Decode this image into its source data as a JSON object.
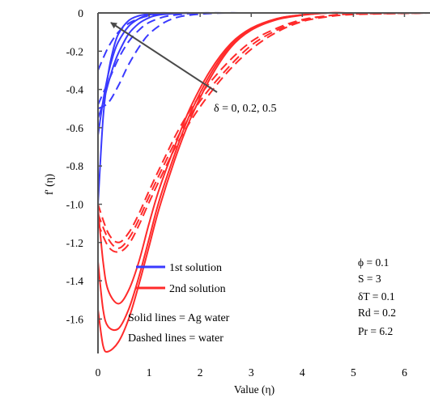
{
  "chart_data": {
    "type": "line",
    "xlabel": "Value (η)",
    "ylabel": "f' (η)",
    "xlim": [
      0,
      6.5
    ],
    "ylim": [
      -1.78,
      0
    ],
    "x_ticks": [
      "0",
      "1",
      "2",
      "3",
      "4",
      "5",
      "6"
    ],
    "y_ticks": [
      "0",
      "-0.2",
      "-0.4",
      "-0.6",
      "-0.8",
      "-1.0",
      "-1.2",
      "-1.4",
      "-1.6"
    ],
    "grid": false,
    "colors": {
      "first": "#3a3aff",
      "second": "#ff2a2a",
      "arrow": "#4a4a4a"
    },
    "legend": {
      "placement": "bottom-left",
      "entries": [
        {
          "label": "1st solution",
          "color": "#3a3aff"
        },
        {
          "label": "2nd solution",
          "color": "#ff2a2a"
        }
      ],
      "notes": [
        "Solid lines = Ag water",
        "Dashed lines = water"
      ]
    },
    "parameters": [
      "ϕ = 0.1",
      "S = 3",
      "δT = 0.1",
      "Rd = 0.2",
      "Pr = 6.2"
    ],
    "annotation": "δ = 0, 0.2, 0.5",
    "series": [
      {
        "solution": "1st",
        "fluid": "Ag water",
        "style": "solid",
        "x": [
          0,
          0.1,
          0.2,
          0.3,
          0.4,
          0.6,
          0.8,
          1.0,
          1.2,
          1.5,
          2.0,
          3.0,
          4.0,
          5.0,
          6.5
        ],
        "y": [
          -1.0,
          -0.55,
          -0.32,
          -0.19,
          -0.11,
          -0.04,
          -0.015,
          -0.005,
          0,
          0,
          0,
          0,
          0,
          0,
          0
        ]
      },
      {
        "solution": "1st",
        "fluid": "Ag water",
        "style": "solid",
        "x": [
          0,
          0.1,
          0.2,
          0.3,
          0.4,
          0.6,
          0.8,
          1.0,
          1.2,
          1.5,
          2.0,
          3.0,
          4.0,
          5.0,
          6.5
        ],
        "y": [
          -0.64,
          -0.46,
          -0.32,
          -0.22,
          -0.15,
          -0.07,
          -0.03,
          -0.01,
          -0.003,
          0,
          0,
          0,
          0,
          0,
          0
        ]
      },
      {
        "solution": "1st",
        "fluid": "Ag water",
        "style": "solid",
        "x": [
          0,
          0.1,
          0.2,
          0.3,
          0.4,
          0.6,
          0.8,
          1.0,
          1.2,
          1.5,
          2.0,
          3.0,
          4.0,
          5.0,
          6.5
        ],
        "y": [
          -0.55,
          -0.47,
          -0.37,
          -0.28,
          -0.21,
          -0.11,
          -0.055,
          -0.025,
          -0.01,
          -0.003,
          0,
          0,
          0,
          0,
          0
        ]
      },
      {
        "solution": "1st",
        "fluid": "water",
        "style": "dashed",
        "x": [
          0,
          0.2,
          0.4,
          0.6,
          0.8,
          1.0,
          1.3,
          1.6,
          2.0,
          2.5,
          3.0,
          4.0,
          5.0,
          6.5
        ],
        "y": [
          -0.3,
          -0.18,
          -0.1,
          -0.055,
          -0.03,
          -0.015,
          -0.005,
          0,
          0,
          0,
          0,
          0,
          0,
          0
        ]
      },
      {
        "solution": "1st",
        "fluid": "water",
        "style": "dashed",
        "x": [
          0,
          0.2,
          0.4,
          0.6,
          0.8,
          1.0,
          1.3,
          1.6,
          2.0,
          2.5,
          3.0,
          4.0,
          5.0,
          6.5
        ],
        "y": [
          -0.48,
          -0.36,
          -0.24,
          -0.15,
          -0.09,
          -0.05,
          -0.02,
          -0.008,
          0,
          0,
          0,
          0,
          0,
          0
        ]
      },
      {
        "solution": "1st",
        "fluid": "water",
        "style": "dashed",
        "x": [
          0,
          0.2,
          0.4,
          0.6,
          0.8,
          1.0,
          1.3,
          1.6,
          2.0,
          2.5,
          3.0,
          4.0,
          5.0,
          6.5
        ],
        "y": [
          -0.5,
          -0.47,
          -0.38,
          -0.27,
          -0.18,
          -0.11,
          -0.05,
          -0.02,
          -0.006,
          0,
          0,
          0,
          0,
          0
        ]
      },
      {
        "solution": "2nd",
        "fluid": "Ag water",
        "style": "solid",
        "x": [
          0,
          0.1,
          0.2,
          0.4,
          0.6,
          0.8,
          1.0,
          1.2,
          1.5,
          1.8,
          2.2,
          2.6,
          3.0,
          3.5,
          4.0,
          4.5,
          5.0,
          6.5
        ],
        "y": [
          -1.02,
          -1.3,
          -1.45,
          -1.52,
          -1.45,
          -1.3,
          -1.1,
          -0.92,
          -0.7,
          -0.5,
          -0.3,
          -0.16,
          -0.08,
          -0.03,
          -0.01,
          0,
          0,
          0
        ]
      },
      {
        "solution": "2nd",
        "fluid": "Ag water",
        "style": "solid",
        "x": [
          0,
          0.1,
          0.2,
          0.4,
          0.6,
          0.8,
          1.0,
          1.2,
          1.5,
          1.8,
          2.2,
          2.6,
          3.0,
          3.5,
          4.0,
          4.5,
          5.0,
          6.5
        ],
        "y": [
          -1.3,
          -1.55,
          -1.64,
          -1.65,
          -1.55,
          -1.38,
          -1.18,
          -0.98,
          -0.74,
          -0.53,
          -0.32,
          -0.17,
          -0.085,
          -0.03,
          -0.01,
          0,
          0,
          0
        ]
      },
      {
        "solution": "2nd",
        "fluid": "Ag water",
        "style": "solid",
        "x": [
          0,
          0.1,
          0.2,
          0.4,
          0.6,
          0.8,
          1.0,
          1.2,
          1.5,
          1.8,
          2.2,
          2.6,
          3.0,
          3.5,
          4.0,
          4.5,
          5.0,
          6.5
        ],
        "y": [
          -1.55,
          -1.74,
          -1.77,
          -1.72,
          -1.6,
          -1.42,
          -1.22,
          -1.02,
          -0.77,
          -0.56,
          -0.34,
          -0.18,
          -0.09,
          -0.035,
          -0.012,
          0,
          0,
          0
        ]
      },
      {
        "solution": "2nd",
        "fluid": "water",
        "style": "dashed",
        "x": [
          0,
          0.2,
          0.4,
          0.6,
          0.8,
          1.0,
          1.3,
          1.6,
          2.0,
          2.5,
          3.0,
          3.5,
          4.0,
          4.5,
          5.0,
          6.5
        ],
        "y": [
          -1.0,
          -1.15,
          -1.2,
          -1.15,
          -1.05,
          -0.93,
          -0.76,
          -0.6,
          -0.43,
          -0.27,
          -0.15,
          -0.08,
          -0.035,
          -0.015,
          -0.005,
          0
        ]
      },
      {
        "solution": "2nd",
        "fluid": "water",
        "style": "dashed",
        "x": [
          0,
          0.2,
          0.4,
          0.6,
          0.8,
          1.0,
          1.3,
          1.6,
          2.0,
          2.5,
          3.0,
          3.5,
          4.0,
          4.5,
          5.0,
          6.5
        ],
        "y": [
          -1.05,
          -1.18,
          -1.23,
          -1.18,
          -1.08,
          -0.96,
          -0.79,
          -0.63,
          -0.46,
          -0.3,
          -0.17,
          -0.09,
          -0.04,
          -0.015,
          -0.005,
          0
        ]
      },
      {
        "solution": "2nd",
        "fluid": "water",
        "style": "dashed",
        "x": [
          0,
          0.2,
          0.4,
          0.6,
          0.8,
          1.0,
          1.3,
          1.6,
          2.0,
          2.5,
          3.0,
          3.5,
          4.0,
          4.5,
          5.0,
          6.5
        ],
        "y": [
          -1.1,
          -1.22,
          -1.25,
          -1.21,
          -1.11,
          -0.99,
          -0.82,
          -0.66,
          -0.49,
          -0.32,
          -0.19,
          -0.1,
          -0.045,
          -0.02,
          -0.008,
          0
        ]
      }
    ]
  }
}
